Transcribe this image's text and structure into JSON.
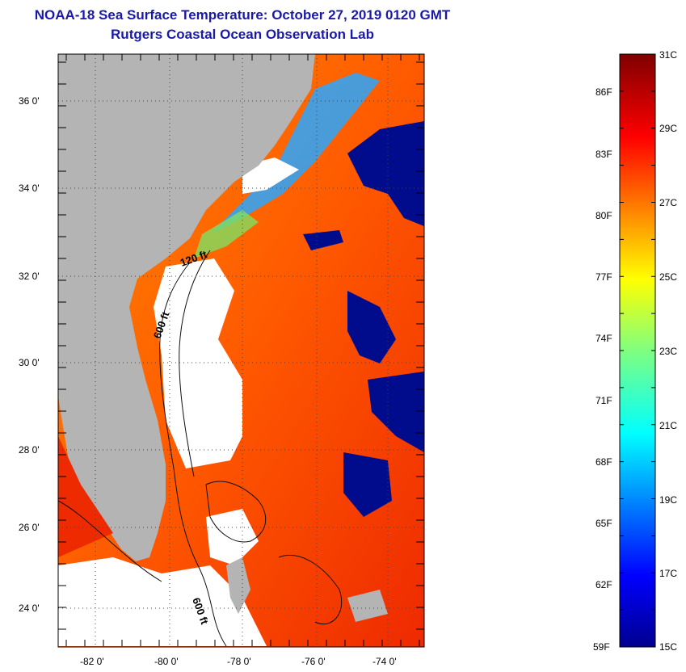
{
  "header": {
    "title": "NOAA-18 Sea Surface Temperature:  October 27, 2019 0120 GMT",
    "subtitle": "Rutgers Coastal Ocean Observation Lab"
  },
  "map": {
    "lat_labels": [
      "36 0'",
      "34 0'",
      "32 0'",
      "30 0'",
      "28 0'",
      "26 0'",
      "24 0'"
    ],
    "lon_labels": [
      "-82 0'",
      "-80 0'",
      "-78 0'",
      "-76 0'",
      "-74 0'"
    ],
    "lat_range": [
      23.1,
      37.2
    ],
    "lon_range": [
      -83.0,
      -73.0
    ],
    "contour_labels": [
      "120 ft",
      "600 ft",
      "600 ft"
    ],
    "colors": {
      "land": "#b4b4b4",
      "frame": "#000000",
      "grid": "#444444"
    }
  },
  "colorbar": {
    "fahrenheit_labels": [
      "86F",
      "83F",
      "80F",
      "77F",
      "74F",
      "71F",
      "68F",
      "65F",
      "62F",
      "59F"
    ],
    "celsius_labels": [
      "31C",
      "29C",
      "27C",
      "25C",
      "23C",
      "21C",
      "19C",
      "17C",
      "15C"
    ],
    "min_c": 15,
    "max_c": 31,
    "colormap": "jet"
  }
}
